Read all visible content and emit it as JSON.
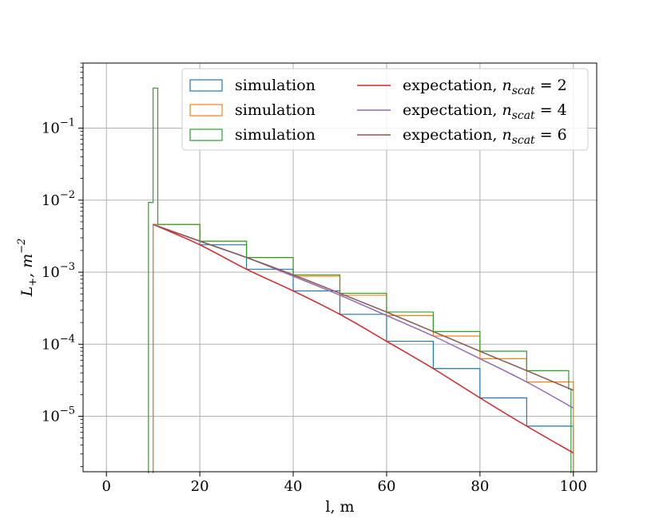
{
  "chart_data": {
    "type": "line",
    "xlabel": "l, m",
    "ylabel": "L₊, m⁻²",
    "xlim": [
      -5,
      105
    ],
    "ylim": [
      1.7e-06,
      0.8
    ],
    "yscale": "log",
    "grid": true,
    "legend_position": "top-right",
    "x_ticks": [
      0,
      20,
      40,
      60,
      80,
      100
    ],
    "x_tick_labels": [
      "0",
      "20",
      "40",
      "60",
      "80",
      "100"
    ],
    "y_ticks": [
      1e-05,
      0.0001,
      0.001,
      0.01,
      0.1
    ],
    "y_tick_labels": [
      {
        "base": "10",
        "exp": "−5"
      },
      {
        "base": "10",
        "exp": "−4"
      },
      {
        "base": "10",
        "exp": "−3"
      },
      {
        "base": "10",
        "exp": "−2"
      },
      {
        "base": "10",
        "exp": "−1"
      }
    ],
    "series": [
      {
        "name": "simulation",
        "kind": "step",
        "color": "#1f77b4",
        "x": [
          10,
          20,
          30,
          40,
          50,
          60,
          70,
          80,
          90,
          100
        ],
        "y": [
          0.0046,
          0.0024,
          0.0011,
          0.00055,
          0.00026,
          0.00011,
          4.6e-05,
          1.8e-05,
          7.3e-06,
          3.1e-06
        ]
      },
      {
        "name": "simulation",
        "kind": "step",
        "color": "#ff7f0e",
        "x": [
          10,
          20,
          30,
          40,
          50,
          60,
          70,
          80,
          90,
          100
        ],
        "y": [
          0.0046,
          0.0027,
          0.0016,
          0.00088,
          0.00048,
          0.00025,
          0.00013,
          6.3e-05,
          3e-05,
          1.3e-05
        ]
      },
      {
        "name": "simulation",
        "kind": "step",
        "color": "#2ca02c",
        "x": [
          9,
          9.5,
          10,
          10.5,
          11,
          20,
          30,
          40,
          50,
          60,
          70,
          80,
          90,
          99,
          99.5
        ],
        "y": [
          0.0093,
          0.0093,
          0.36,
          0.36,
          0.0046,
          0.0027,
          0.0016,
          0.00092,
          0.00051,
          0.00028,
          0.00015,
          8e-05,
          4.3e-05,
          2.4e-05,
          2.4e-05
        ]
      },
      {
        "name": "expectation, n",
        "subscript": "scat",
        "suffix": " = 2",
        "kind": "line",
        "color": "#d62728",
        "x": [
          10,
          20,
          30,
          40,
          50,
          60,
          70,
          80,
          90,
          100
        ],
        "y": [
          0.0046,
          0.0024,
          0.0011,
          0.00055,
          0.00026,
          0.00011,
          4.6e-05,
          1.8e-05,
          7.3e-06,
          3.1e-06
        ]
      },
      {
        "name": "expectation, n",
        "subscript": "scat",
        "suffix": " = 4",
        "kind": "line",
        "color": "#9467bd",
        "x": [
          10,
          20,
          30,
          40,
          50,
          60,
          70,
          80,
          90,
          100
        ],
        "y": [
          0.0046,
          0.0027,
          0.0016,
          0.00088,
          0.00048,
          0.00025,
          0.00013,
          6.3e-05,
          3e-05,
          1.3e-05
        ]
      },
      {
        "name": "expectation, n",
        "subscript": "scat",
        "suffix": " = 6",
        "kind": "line",
        "color": "#8c564b",
        "x": [
          10,
          20,
          30,
          40,
          50,
          60,
          70,
          80,
          90,
          100
        ],
        "y": [
          0.0046,
          0.0027,
          0.0016,
          0.00092,
          0.00051,
          0.00028,
          0.00015,
          8e-05,
          4.3e-05,
          2.3e-05
        ]
      }
    ]
  }
}
